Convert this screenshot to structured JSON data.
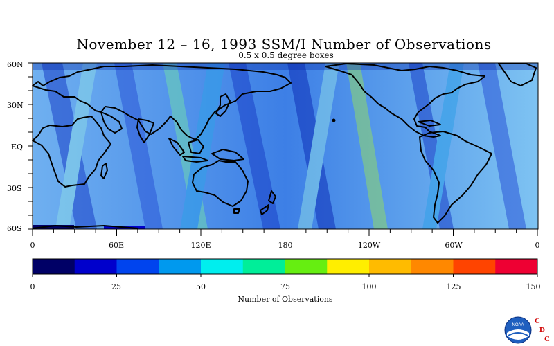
{
  "title": "November 12 – 16, 1993 SSM/I Number of Observations",
  "subtitle": "0.5 x 0.5 degree boxes",
  "map": {
    "lat_labels": [
      "60N",
      "30N",
      "EQ",
      "30S",
      "60S"
    ],
    "lon_labels": [
      "0",
      "60E",
      "120E",
      "180",
      "120W",
      "60W",
      "0"
    ],
    "lat_range": [
      -60,
      60
    ],
    "lon_range": [
      0,
      360
    ]
  },
  "colorbar": {
    "label": "Number of Observations",
    "tick_labels": [
      "0",
      "25",
      "50",
      "75",
      "100",
      "125",
      "150"
    ],
    "range": [
      0,
      150
    ],
    "colors": [
      "#000066",
      "#0000cc",
      "#0044ee",
      "#0099ee",
      "#00eeee",
      "#00ee99",
      "#66ee11",
      "#ffee00",
      "#ffbb00",
      "#ff8800",
      "#ff4400",
      "#ee0033"
    ]
  },
  "logo": {
    "text": "NOAA",
    "letters": [
      "C",
      "D",
      "C"
    ]
  }
}
